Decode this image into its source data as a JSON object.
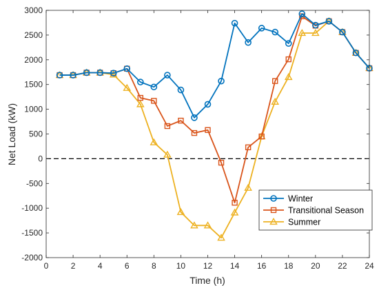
{
  "chart_data": {
    "type": "line",
    "title": "",
    "xlabel": "Time (h)",
    "ylabel": "Net Load (kW)",
    "xlim": [
      0,
      24
    ],
    "ylim": [
      -2000,
      3000
    ],
    "xticks": [
      0,
      2,
      4,
      6,
      8,
      10,
      12,
      14,
      16,
      18,
      20,
      22,
      24
    ],
    "yticks": [
      -2000,
      -1500,
      -1000,
      -500,
      0,
      500,
      1000,
      1500,
      2000,
      2500,
      3000
    ],
    "grid": false,
    "reference_line": {
      "y": 0,
      "style": "dashed",
      "color": "#000000"
    },
    "legend_position": "bottom-right",
    "x": [
      1,
      2,
      3,
      4,
      5,
      6,
      7,
      8,
      9,
      10,
      11,
      12,
      13,
      14,
      15,
      16,
      17,
      18,
      19,
      20,
      21,
      22,
      23,
      24
    ],
    "series": [
      {
        "name": "Winter",
        "marker": "circle",
        "color": "#0072BD",
        "values": [
          1690,
          1690,
          1740,
          1740,
          1730,
          1820,
          1550,
          1450,
          1690,
          1390,
          830,
          1100,
          1570,
          2740,
          2350,
          2640,
          2560,
          2330,
          2930,
          2700,
          2780,
          2560,
          2140,
          1830
        ]
      },
      {
        "name": "Transitional Season",
        "marker": "square",
        "color": "#D95319",
        "values": [
          1690,
          1690,
          1740,
          1740,
          1730,
          1820,
          1230,
          1170,
          660,
          770,
          520,
          580,
          -80,
          -890,
          230,
          450,
          1570,
          2010,
          2880,
          2690,
          2780,
          2560,
          2140,
          1830
        ]
      },
      {
        "name": "Summer",
        "marker": "triangle",
        "color": "#EDB120",
        "values": [
          1690,
          1690,
          1740,
          1740,
          1700,
          1430,
          1100,
          330,
          80,
          -1080,
          -1350,
          -1350,
          -1600,
          -1090,
          -590,
          450,
          1150,
          1650,
          2540,
          2540,
          2780,
          2560,
          2140,
          1830
        ]
      }
    ]
  }
}
